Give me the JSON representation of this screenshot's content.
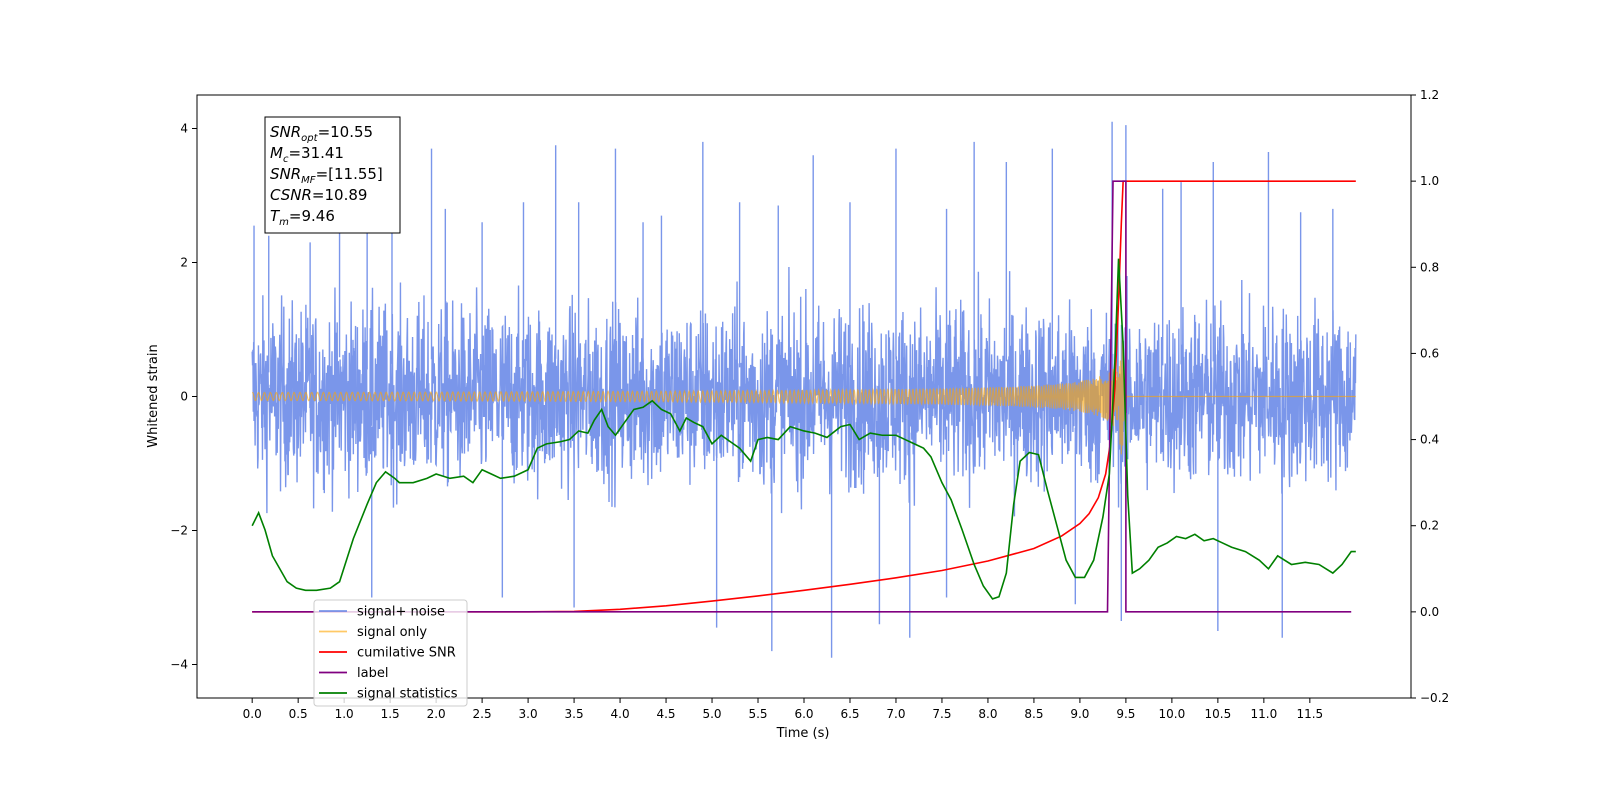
{
  "chart_data": {
    "type": "line",
    "xlabel": "Time (s)",
    "ylabel": "Whitened strain",
    "xlim": [
      -0.6,
      12.6
    ],
    "ylim": [
      -4.5,
      4.5
    ],
    "y2lim": [
      -0.2,
      1.2
    ],
    "x_ticks": [
      0.0,
      0.5,
      1.0,
      1.5,
      2.0,
      2.5,
      3.0,
      3.5,
      4.0,
      4.5,
      5.0,
      5.5,
      6.0,
      6.5,
      7.0,
      7.5,
      8.0,
      8.5,
      9.0,
      9.5,
      10.0,
      10.5,
      11.0,
      11.5
    ],
    "x_tick_labels": [
      "0.0",
      "0.5",
      "1.0",
      "1.5",
      "2.0",
      "2.5",
      "3.0",
      "3.5",
      "4.0",
      "4.5",
      "5.0",
      "5.5",
      "6.0",
      "6.5",
      "7.0",
      "7.5",
      "8.0",
      "8.5",
      "9.0",
      "9.5",
      "10.0",
      "10.5",
      "11.0",
      "11.5"
    ],
    "y_ticks": [
      -4,
      -2,
      0,
      2,
      4
    ],
    "y_tick_labels": [
      "−4",
      "−2",
      "0",
      "2",
      "4"
    ],
    "y2_ticks": [
      -0.2,
      0.0,
      0.2,
      0.4,
      0.6,
      0.8,
      1.0,
      1.2
    ],
    "y2_tick_labels": [
      "−0.2",
      "0.0",
      "0.2",
      "0.4",
      "0.6",
      "0.8",
      "1.0",
      "1.2"
    ],
    "grid": false,
    "legend_position": "lower-left",
    "annotation": {
      "lines": [
        {
          "base": "SNR",
          "sub": "opt",
          "value": "=10.55"
        },
        {
          "base": "M",
          "sub": "c",
          "value": "=31.41"
        },
        {
          "base": "SNR",
          "sub": "MF",
          "value": "=[11.55]"
        },
        {
          "base": "CSNR",
          "sub": "",
          "value": "=10.89"
        },
        {
          "base": "T",
          "sub": "m",
          "value": "=9.46"
        }
      ]
    },
    "series": [
      {
        "name": "signal+ noise",
        "axis": "left",
        "color": "#4169e1",
        "opacity": 0.7,
        "kind": "noise",
        "x_range": [
          0.0,
          12.0
        ],
        "amplitude_range": [
          -3.9,
          4.1
        ],
        "spikes": [
          {
            "x": 0.02,
            "y": 2.55
          },
          {
            "x": 0.18,
            "y": 2.4
          },
          {
            "x": 0.63,
            "y": 2.3
          },
          {
            "x": 0.95,
            "y": 3.9
          },
          {
            "x": 1.25,
            "y": 2.7
          },
          {
            "x": 1.52,
            "y": 3.25
          },
          {
            "x": 1.95,
            "y": 3.7
          },
          {
            "x": 2.1,
            "y": 2.8
          },
          {
            "x": 2.5,
            "y": 2.6
          },
          {
            "x": 2.95,
            "y": 2.9
          },
          {
            "x": 3.3,
            "y": 3.75
          },
          {
            "x": 3.55,
            "y": 2.9
          },
          {
            "x": 3.95,
            "y": 3.7
          },
          {
            "x": 4.25,
            "y": 2.6
          },
          {
            "x": 4.45,
            "y": 2.7
          },
          {
            "x": 4.9,
            "y": 3.8
          },
          {
            "x": 5.3,
            "y": 2.9
          },
          {
            "x": 5.72,
            "y": 2.85
          },
          {
            "x": 6.1,
            "y": 3.6
          },
          {
            "x": 6.5,
            "y": 2.9
          },
          {
            "x": 7.0,
            "y": 3.7
          },
          {
            "x": 7.55,
            "y": 2.8
          },
          {
            "x": 7.85,
            "y": 3.8
          },
          {
            "x": 8.2,
            "y": 3.5
          },
          {
            "x": 8.7,
            "y": 3.7
          },
          {
            "x": 9.35,
            "y": 4.1
          },
          {
            "x": 9.5,
            "y": 4.05
          },
          {
            "x": 9.9,
            "y": 3.1
          },
          {
            "x": 10.1,
            "y": 3.2
          },
          {
            "x": 10.45,
            "y": 3.5
          },
          {
            "x": 11.05,
            "y": 3.65
          },
          {
            "x": 11.4,
            "y": 2.75
          },
          {
            "x": 11.75,
            "y": 2.8
          },
          {
            "x": 1.3,
            "y": -3.0
          },
          {
            "x": 2.72,
            "y": -3.0
          },
          {
            "x": 3.5,
            "y": -3.15
          },
          {
            "x": 5.05,
            "y": -3.45
          },
          {
            "x": 5.65,
            "y": -3.8
          },
          {
            "x": 6.3,
            "y": -3.9
          },
          {
            "x": 6.82,
            "y": -3.4
          },
          {
            "x": 7.15,
            "y": -3.6
          },
          {
            "x": 7.55,
            "y": -3.0
          },
          {
            "x": 8.95,
            "y": -3.1
          },
          {
            "x": 9.45,
            "y": -3.35
          },
          {
            "x": 10.5,
            "y": -3.5
          },
          {
            "x": 11.2,
            "y": -3.6
          }
        ]
      },
      {
        "name": "signal only",
        "axis": "left",
        "color": "#ffa500",
        "opacity": 0.6,
        "kind": "chirp",
        "x_range": [
          0.0,
          12.0
        ],
        "merger_time": 9.46,
        "peak_amplitude": 1.0
      },
      {
        "name": "cumilative SNR",
        "axis": "right",
        "color": "#ff0000",
        "points": [
          [
            0.0,
            0.0
          ],
          [
            3.0,
            0.0
          ],
          [
            3.5,
            0.001
          ],
          [
            4.0,
            0.006
          ],
          [
            4.5,
            0.014
          ],
          [
            5.0,
            0.025
          ],
          [
            5.5,
            0.037
          ],
          [
            6.0,
            0.05
          ],
          [
            6.5,
            0.064
          ],
          [
            7.0,
            0.079
          ],
          [
            7.5,
            0.096
          ],
          [
            8.0,
            0.118
          ],
          [
            8.5,
            0.147
          ],
          [
            8.8,
            0.176
          ],
          [
            9.0,
            0.205
          ],
          [
            9.1,
            0.228
          ],
          [
            9.2,
            0.265
          ],
          [
            9.28,
            0.32
          ],
          [
            9.33,
            0.39
          ],
          [
            9.38,
            0.52
          ],
          [
            9.42,
            0.72
          ],
          [
            9.45,
            0.9
          ],
          [
            9.47,
            1.0
          ],
          [
            12.0,
            1.0
          ]
        ]
      },
      {
        "name": "label",
        "axis": "right",
        "color": "#800080",
        "points": [
          [
            0.0,
            0.0
          ],
          [
            9.3,
            0.0
          ],
          [
            9.36,
            1.0
          ],
          [
            9.5,
            1.0
          ],
          [
            9.5,
            0.0
          ],
          [
            11.95,
            0.0
          ]
        ]
      },
      {
        "name": "signal statistics",
        "axis": "right",
        "color": "#008000",
        "points": [
          [
            0.0,
            0.2
          ],
          [
            0.07,
            0.23
          ],
          [
            0.14,
            0.19
          ],
          [
            0.22,
            0.13
          ],
          [
            0.3,
            0.1
          ],
          [
            0.38,
            0.07
          ],
          [
            0.48,
            0.055
          ],
          [
            0.58,
            0.05
          ],
          [
            0.7,
            0.05
          ],
          [
            0.85,
            0.055
          ],
          [
            0.95,
            0.07
          ],
          [
            1.1,
            0.17
          ],
          [
            1.25,
            0.25
          ],
          [
            1.35,
            0.3
          ],
          [
            1.45,
            0.325
          ],
          [
            1.55,
            0.31
          ],
          [
            1.6,
            0.3
          ],
          [
            1.75,
            0.3
          ],
          [
            1.9,
            0.31
          ],
          [
            2.0,
            0.32
          ],
          [
            2.15,
            0.31
          ],
          [
            2.3,
            0.315
          ],
          [
            2.4,
            0.3
          ],
          [
            2.5,
            0.33
          ],
          [
            2.6,
            0.32
          ],
          [
            2.7,
            0.31
          ],
          [
            2.85,
            0.315
          ],
          [
            3.0,
            0.33
          ],
          [
            3.1,
            0.38
          ],
          [
            3.2,
            0.39
          ],
          [
            3.35,
            0.395
          ],
          [
            3.45,
            0.4
          ],
          [
            3.55,
            0.42
          ],
          [
            3.65,
            0.415
          ],
          [
            3.72,
            0.445
          ],
          [
            3.8,
            0.47
          ],
          [
            3.87,
            0.43
          ],
          [
            3.95,
            0.41
          ],
          [
            4.05,
            0.44
          ],
          [
            4.15,
            0.47
          ],
          [
            4.25,
            0.475
          ],
          [
            4.35,
            0.49
          ],
          [
            4.45,
            0.47
          ],
          [
            4.55,
            0.46
          ],
          [
            4.65,
            0.42
          ],
          [
            4.72,
            0.45
          ],
          [
            4.8,
            0.44
          ],
          [
            4.9,
            0.43
          ],
          [
            5.0,
            0.39
          ],
          [
            5.1,
            0.41
          ],
          [
            5.2,
            0.395
          ],
          [
            5.3,
            0.38
          ],
          [
            5.42,
            0.35
          ],
          [
            5.5,
            0.4
          ],
          [
            5.6,
            0.405
          ],
          [
            5.72,
            0.4
          ],
          [
            5.85,
            0.43
          ],
          [
            6.0,
            0.42
          ],
          [
            6.12,
            0.415
          ],
          [
            6.25,
            0.405
          ],
          [
            6.4,
            0.43
          ],
          [
            6.5,
            0.435
          ],
          [
            6.6,
            0.4
          ],
          [
            6.72,
            0.415
          ],
          [
            6.85,
            0.41
          ],
          [
            7.0,
            0.41
          ],
          [
            7.1,
            0.4
          ],
          [
            7.2,
            0.39
          ],
          [
            7.3,
            0.38
          ],
          [
            7.38,
            0.36
          ],
          [
            7.5,
            0.3
          ],
          [
            7.6,
            0.26
          ],
          [
            7.72,
            0.19
          ],
          [
            7.85,
            0.11
          ],
          [
            7.95,
            0.06
          ],
          [
            8.05,
            0.03
          ],
          [
            8.12,
            0.035
          ],
          [
            8.2,
            0.09
          ],
          [
            8.28,
            0.25
          ],
          [
            8.35,
            0.35
          ],
          [
            8.45,
            0.37
          ],
          [
            8.55,
            0.365
          ],
          [
            8.65,
            0.28
          ],
          [
            8.75,
            0.2
          ],
          [
            8.85,
            0.12
          ],
          [
            8.95,
            0.08
          ],
          [
            9.05,
            0.08
          ],
          [
            9.15,
            0.12
          ],
          [
            9.25,
            0.22
          ],
          [
            9.32,
            0.32
          ],
          [
            9.38,
            0.58
          ],
          [
            9.42,
            0.82
          ],
          [
            9.47,
            0.62
          ],
          [
            9.52,
            0.27
          ],
          [
            9.57,
            0.09
          ],
          [
            9.65,
            0.1
          ],
          [
            9.75,
            0.12
          ],
          [
            9.85,
            0.15
          ],
          [
            9.95,
            0.16
          ],
          [
            10.05,
            0.175
          ],
          [
            10.15,
            0.17
          ],
          [
            10.25,
            0.18
          ],
          [
            10.35,
            0.165
          ],
          [
            10.45,
            0.17
          ],
          [
            10.55,
            0.16
          ],
          [
            10.65,
            0.15
          ],
          [
            10.8,
            0.14
          ],
          [
            10.95,
            0.12
          ],
          [
            11.05,
            0.1
          ],
          [
            11.15,
            0.13
          ],
          [
            11.3,
            0.11
          ],
          [
            11.45,
            0.115
          ],
          [
            11.6,
            0.11
          ],
          [
            11.75,
            0.09
          ],
          [
            11.85,
            0.11
          ],
          [
            11.95,
            0.14
          ],
          [
            12.0,
            0.14
          ]
        ]
      }
    ],
    "legend": [
      "signal+ noise",
      "signal only",
      "cumilative SNR",
      "label",
      "signal statistics"
    ]
  }
}
